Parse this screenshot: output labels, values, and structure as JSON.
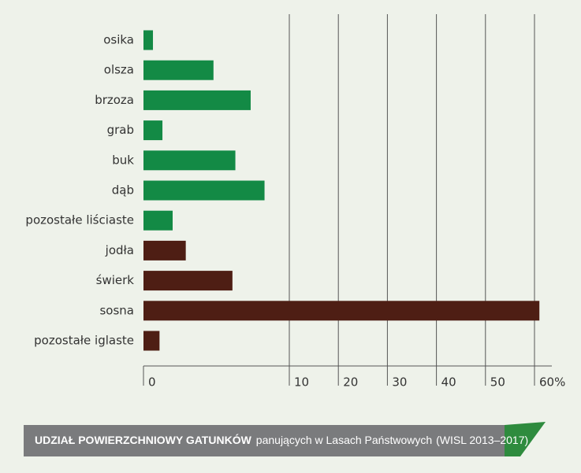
{
  "chart_data": {
    "type": "hbar",
    "title": "UDZIAŁ POWIERZCHNIOWY GATUNKÓW",
    "subtitle": "panujących w Lasach Państwowych",
    "note": "(WISL 2013–2017)",
    "categories": [
      "osika",
      "olsza",
      "brzoza",
      "grab",
      "buk",
      "dąb",
      "pozostałe liściaste",
      "jodła",
      "świerk",
      "sosna",
      "pozostałe iglaste"
    ],
    "values": [
      0.65,
      4.8,
      7.35,
      1.3,
      6.3,
      8.3,
      2.0,
      2.9,
      6.1,
      61,
      1.1
    ],
    "colors": [
      "#138a45",
      "#138a45",
      "#138a45",
      "#138a45",
      "#138a45",
      "#138a45",
      "#138a45",
      "#4e1e14",
      "#4e1e14",
      "#4e1e14",
      "#4e1e14"
    ],
    "xlim": [
      0,
      60
    ],
    "xticks": [
      0,
      10,
      20,
      30,
      40,
      50,
      {
        "value": 60,
        "label": "60%"
      }
    ],
    "grid": true
  }
}
